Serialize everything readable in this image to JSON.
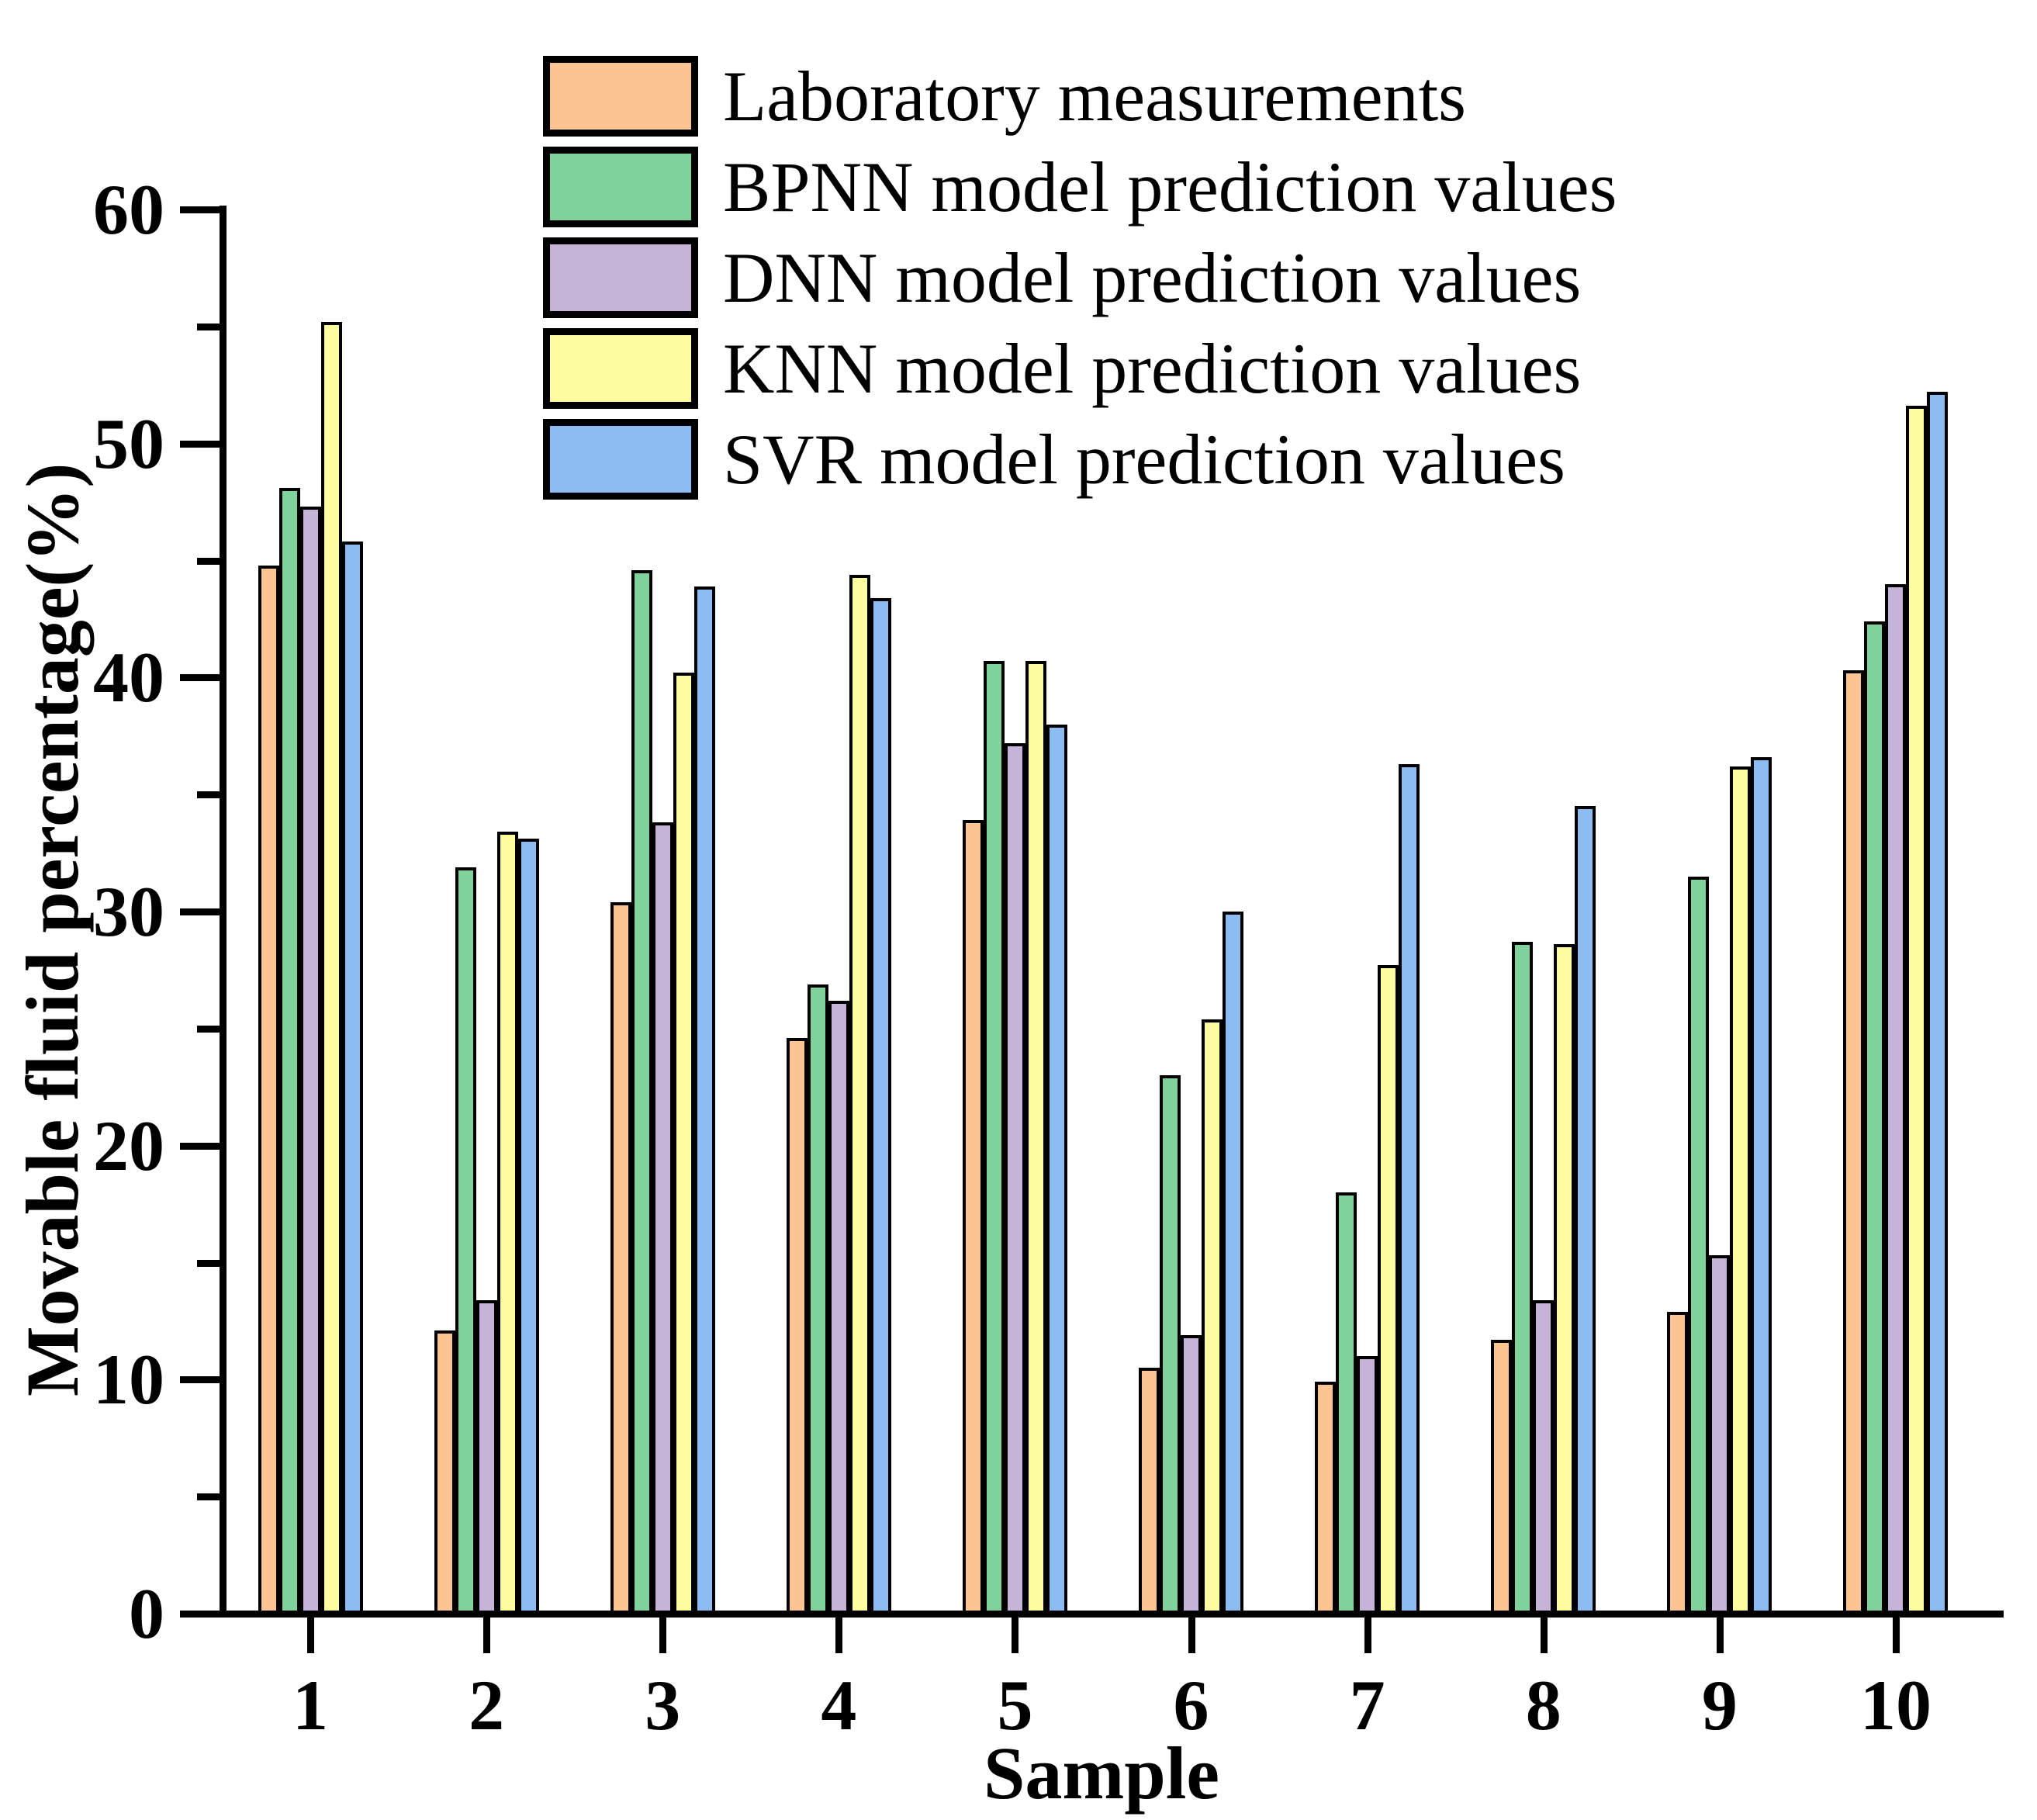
{
  "chart_data": {
    "type": "bar",
    "title": "",
    "xlabel": "Sample",
    "ylabel": "Movable fluid percentage(%)",
    "categories": [
      "1",
      "2",
      "3",
      "4",
      "5",
      "6",
      "7",
      "8",
      "9",
      "10"
    ],
    "series": [
      {
        "name": "Laboratory measurements",
        "color": "#FCC491",
        "values": [
          44.8,
          12.1,
          30.4,
          24.6,
          33.9,
          10.5,
          9.9,
          11.7,
          12.9,
          40.3
        ]
      },
      {
        "name": "BPNN model prediction values",
        "color": "#80D29D",
        "values": [
          48.1,
          31.9,
          44.6,
          26.9,
          40.7,
          23.0,
          18.0,
          28.7,
          31.5,
          42.4
        ]
      },
      {
        "name": "DNN model prediction values",
        "color": "#C6B3D8",
        "values": [
          47.3,
          13.4,
          33.8,
          26.2,
          37.2,
          11.9,
          11.0,
          13.4,
          15.3,
          44.0
        ]
      },
      {
        "name": "KNN model prediction values",
        "color": "#FDFC9F",
        "values": [
          55.2,
          33.4,
          40.2,
          44.4,
          40.7,
          25.4,
          27.7,
          28.6,
          36.2,
          51.6
        ]
      },
      {
        "name": "SVR model prediction values",
        "color": "#8BBCF2",
        "values": [
          45.8,
          33.1,
          43.9,
          43.4,
          38.0,
          30.0,
          36.3,
          34.5,
          36.6,
          52.2
        ]
      }
    ],
    "ylim": [
      0,
      60
    ],
    "y_major_ticks": [
      "0",
      "10",
      "20",
      "30",
      "40",
      "50",
      "60"
    ],
    "y_minor_step": 5,
    "grid": false,
    "legend_position": "top-left-inside",
    "bar_outline_color": "#000000",
    "axis_color": "#000000"
  }
}
